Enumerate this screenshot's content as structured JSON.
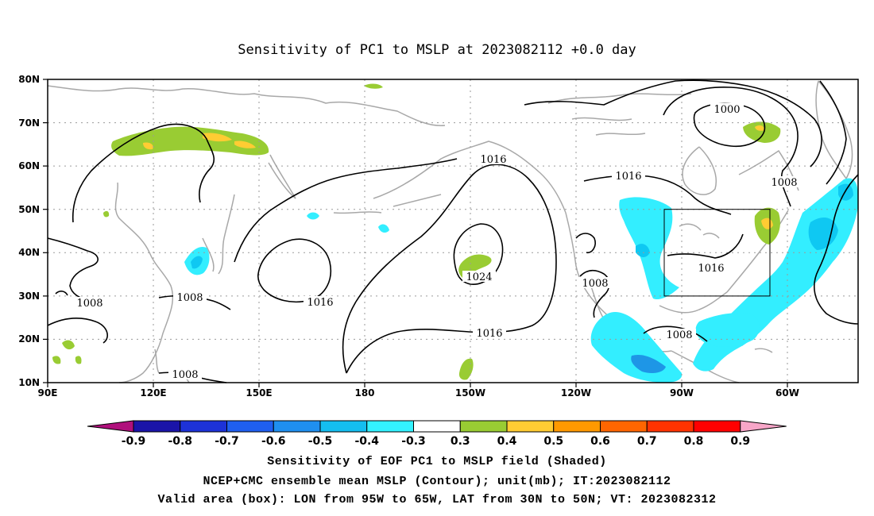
{
  "title": "Sensitivity of PC1 to MSLP at 2023082112 +0.0 day",
  "map": {
    "lat_labels": [
      "80N",
      "70N",
      "60N",
      "50N",
      "40N",
      "30N",
      "20N",
      "10N"
    ],
    "lon_labels": [
      "90E",
      "120E",
      "150E",
      "180",
      "150W",
      "120W",
      "90W",
      "60W"
    ],
    "contour_labels": {
      "c1016_pacific_top": "1016",
      "c1024_high": "1024",
      "c1016_west": "1016",
      "c1016_pacific_bottom": "1016",
      "c1008_asia": "1008",
      "c1008_japan": "1008",
      "c1008_tropics": "1008",
      "c1000_arctic": "1000",
      "c1008_atlantic": "1008",
      "c1016_na_north": "1016",
      "c1016_na_east": "1016",
      "c1008_mexico": "1008",
      "c1008_gulf": "1008"
    },
    "colors": {
      "land_outline": "#a8a8a8",
      "contour": "#000000",
      "grid": "#9a9a9a",
      "pos_03": "#99cc33",
      "pos_04": "#ffcc33",
      "neg_03": "#33eeff",
      "neg_04": "#0fc8f2",
      "neg_05": "#1e96e6"
    }
  },
  "colorbar": {
    "labels": [
      "-0.9",
      "-0.8",
      "-0.7",
      "-0.6",
      "-0.5",
      "-0.4",
      "-0.3",
      "0.3",
      "0.4",
      "0.5",
      "0.6",
      "0.7",
      "0.8",
      "0.9"
    ],
    "colors": [
      "#b0107c",
      "#1a14a8",
      "#1d32d8",
      "#1f5ff0",
      "#1f8ff0",
      "#14bef0",
      "#33f2ff",
      "#ffffff",
      "#99cc33",
      "#ffcc33",
      "#ff9900",
      "#ff6600",
      "#ff3300",
      "#ff0000",
      "#f7a6c8"
    ]
  },
  "captions": {
    "line1": "Sensitivity of EOF PC1 to MSLP field (Shaded)",
    "line2": "NCEP+CMC ensemble mean MSLP (Contour); unit(mb); IT:2023082112",
    "line3": "Valid area (box): LON from 95W to 65W, LAT from 30N to 50N; VT: 2023082312"
  }
}
